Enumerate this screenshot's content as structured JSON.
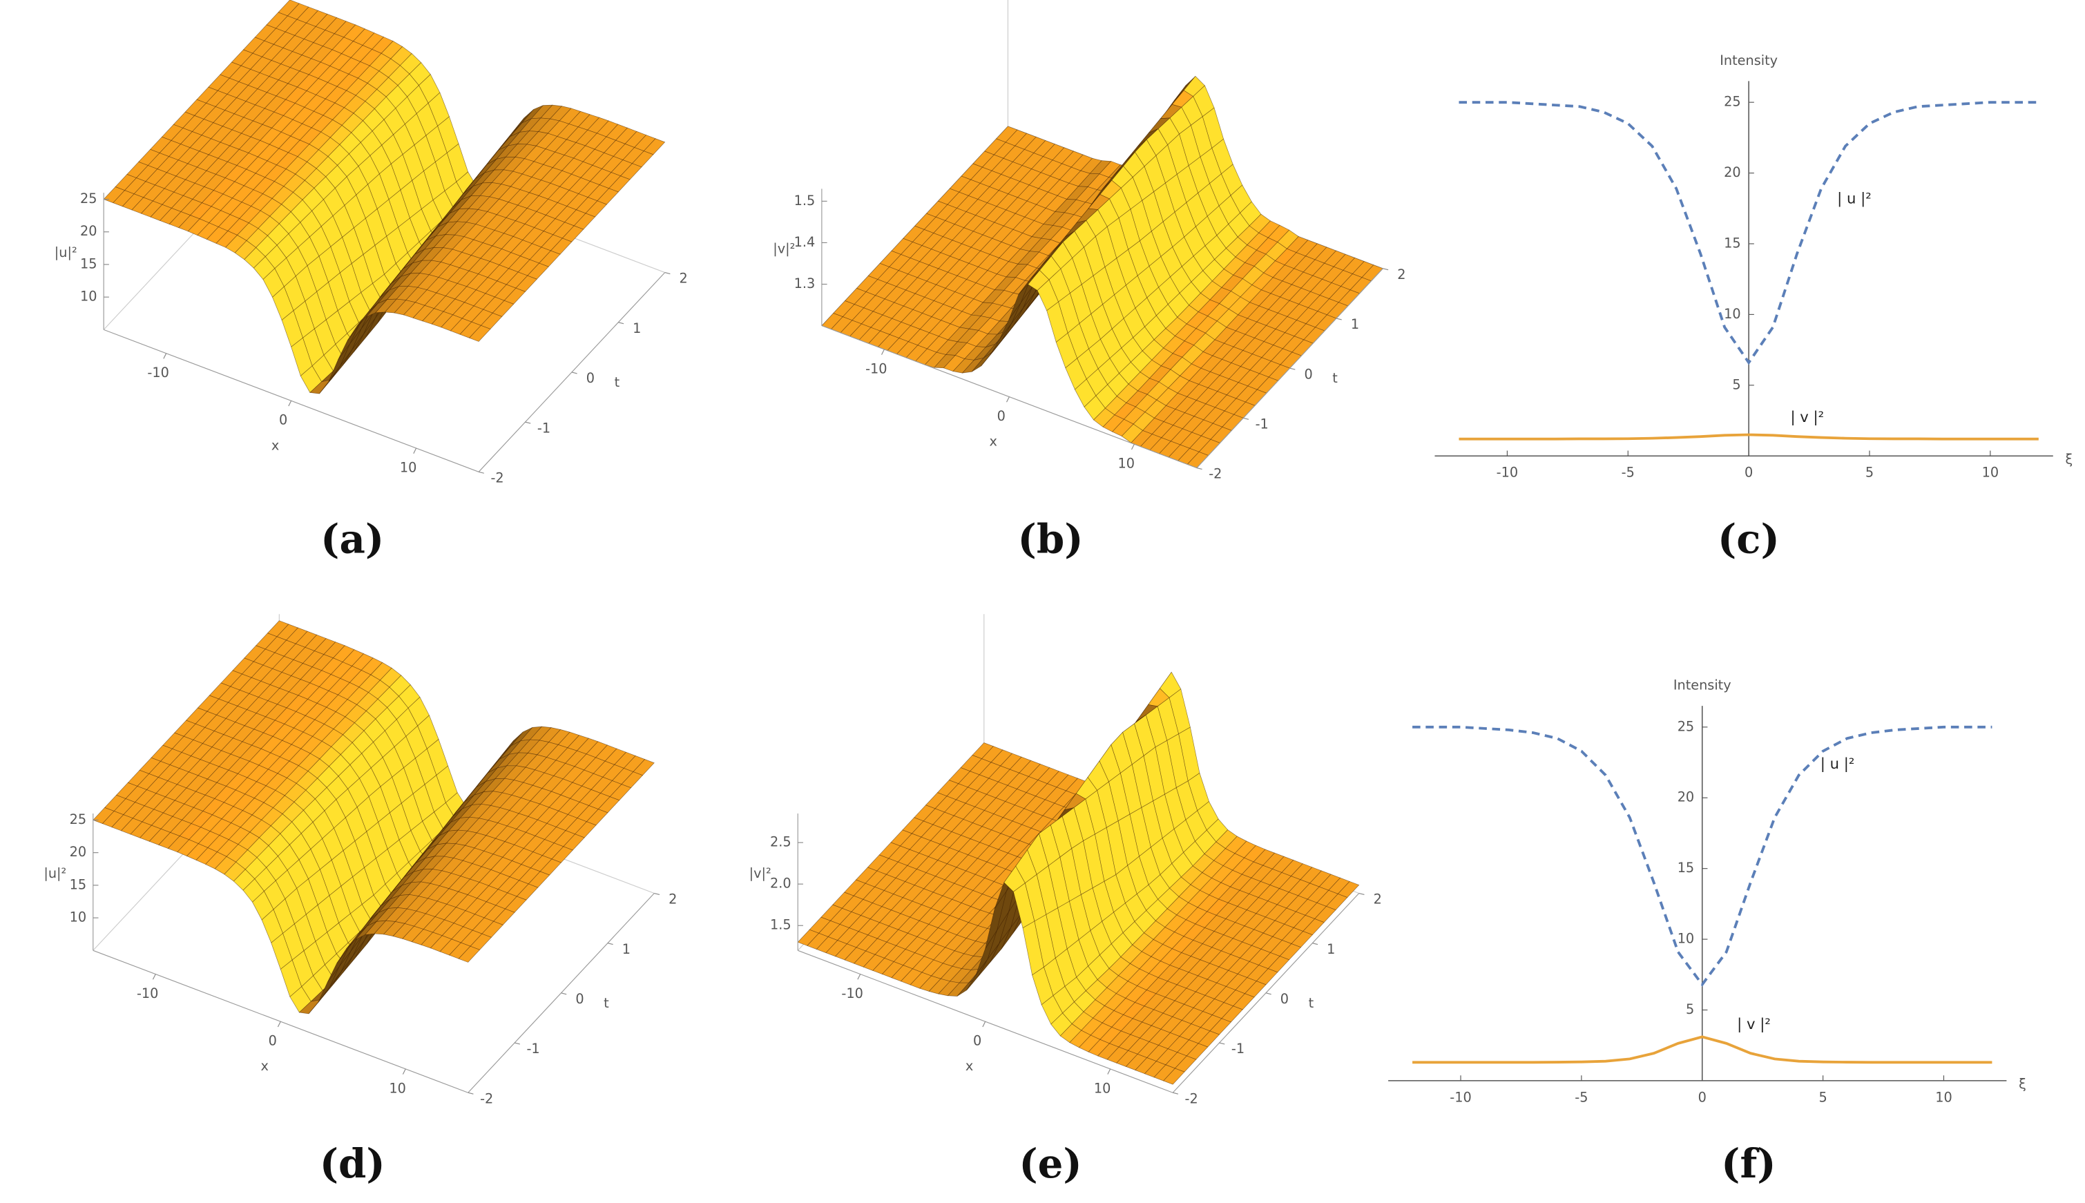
{
  "chart_data": [
    {
      "type": "surface",
      "caption": "(a)",
      "xlabel": "x",
      "ylabel": "t",
      "zlabel": "|u|²",
      "color": "#f7a01e",
      "xlim": [
        -15,
        15
      ],
      "ylim": [
        -2,
        2
      ],
      "zlim": [
        5,
        26
      ],
      "xticks": [
        -10,
        0,
        10
      ],
      "yticks": [
        -2,
        -1,
        0,
        1,
        2
      ],
      "zticks": [
        10,
        15,
        20,
        25
      ]
    },
    {
      "type": "surface",
      "caption": "(b)",
      "xlabel": "x",
      "ylabel": "t",
      "zlabel": "|v|²",
      "color": "#f7a01e",
      "xlim": [
        -15,
        15
      ],
      "ylim": [
        -2,
        2
      ],
      "zlim": [
        1.2,
        1.53
      ],
      "xticks": [
        -10,
        0,
        10
      ],
      "yticks": [
        -2,
        -1,
        0,
        1,
        2
      ],
      "zticks": [
        1.3,
        1.4,
        1.5
      ]
    },
    {
      "type": "line",
      "caption": "(c)",
      "title": "Intensity",
      "xlabel": "ξ",
      "xlim": [
        -13,
        12.6
      ],
      "ylim": [
        0,
        26.5
      ],
      "xticks": [
        -10,
        -5,
        0,
        5,
        10
      ],
      "yticks": [
        5,
        10,
        15,
        20,
        25
      ],
      "x": [
        -12,
        -11,
        -10,
        -9,
        -8,
        -7,
        -6,
        -5,
        -4,
        -3,
        -2,
        -1,
        0,
        1,
        2,
        3,
        4,
        5,
        6,
        7,
        8,
        9,
        10,
        11,
        12
      ],
      "series": [
        {
          "name": "| u |²",
          "color": "#5b7fb8",
          "style": "dashed",
          "values": [
            25,
            25,
            25,
            24.9,
            24.8,
            24.7,
            24.3,
            23.5,
            21.9,
            18.9,
            14.3,
            9.1,
            6.6,
            9.1,
            14.3,
            18.9,
            21.9,
            23.5,
            24.3,
            24.7,
            24.8,
            24.9,
            25,
            25,
            25
          ]
        },
        {
          "name": "| v |²",
          "color": "#e8a33a",
          "style": "solid",
          "values": [
            1.2,
            1.2,
            1.2,
            1.2,
            1.2,
            1.21,
            1.21,
            1.22,
            1.25,
            1.3,
            1.37,
            1.46,
            1.5,
            1.46,
            1.37,
            1.3,
            1.25,
            1.22,
            1.21,
            1.21,
            1.2,
            1.2,
            1.2,
            1.2,
            1.2
          ]
        }
      ]
    },
    {
      "type": "surface",
      "caption": "(d)",
      "xlabel": "x",
      "ylabel": "t",
      "zlabel": "|u|²",
      "color": "#f7a01e",
      "xlim": [
        -15,
        15
      ],
      "ylim": [
        -2,
        2
      ],
      "zlim": [
        5,
        26
      ],
      "xticks": [
        -10,
        0,
        10
      ],
      "yticks": [
        -2,
        -1,
        0,
        1,
        2
      ],
      "zticks": [
        10,
        15,
        20,
        25
      ]
    },
    {
      "type": "surface",
      "caption": "(e)",
      "xlabel": "x",
      "ylabel": "t",
      "zlabel": "|v|²",
      "color": "#f7a01e",
      "xlim": [
        -15,
        15
      ],
      "ylim": [
        -2,
        2
      ],
      "zlim": [
        1.2,
        2.85
      ],
      "xticks": [
        -10,
        0,
        10
      ],
      "yticks": [
        -2,
        -1,
        0,
        1,
        2
      ],
      "zticks": [
        1.5,
        {
          "value": 2,
          "label": "2.0"
        },
        2.5
      ]
    },
    {
      "type": "line",
      "caption": "(f)",
      "title": "Intensity",
      "xlabel": "ξ",
      "xlim": [
        -13,
        12.6
      ],
      "ylim": [
        0,
        26.5
      ],
      "xticks": [
        -10,
        -5,
        0,
        5,
        10
      ],
      "yticks": [
        5,
        10,
        15,
        20,
        25
      ],
      "x": [
        -12,
        -11,
        -10,
        -9,
        -8,
        -7,
        -6,
        -5,
        -4,
        -3,
        -2,
        -1,
        0,
        1,
        2,
        3,
        4,
        5,
        6,
        7,
        8,
        9,
        10,
        11,
        12
      ],
      "series": [
        {
          "name": "| u |²",
          "color": "#5b7fb8",
          "style": "dashed",
          "values": [
            25,
            25,
            25,
            24.9,
            24.8,
            24.6,
            24.2,
            23.3,
            21.6,
            18.6,
            14.0,
            9.1,
            6.8,
            9.1,
            14.0,
            18.6,
            21.6,
            23.3,
            24.2,
            24.6,
            24.8,
            24.9,
            25,
            25,
            25
          ]
        },
        {
          "name": "| v |²",
          "color": "#e8a33a",
          "style": "solid",
          "values": [
            1.3,
            1.3,
            1.3,
            1.3,
            1.3,
            1.3,
            1.31,
            1.33,
            1.38,
            1.54,
            1.94,
            2.64,
            3.1,
            2.64,
            1.94,
            1.54,
            1.38,
            1.33,
            1.31,
            1.3,
            1.3,
            1.3,
            1.3,
            1.3,
            1.3
          ]
        }
      ]
    }
  ]
}
